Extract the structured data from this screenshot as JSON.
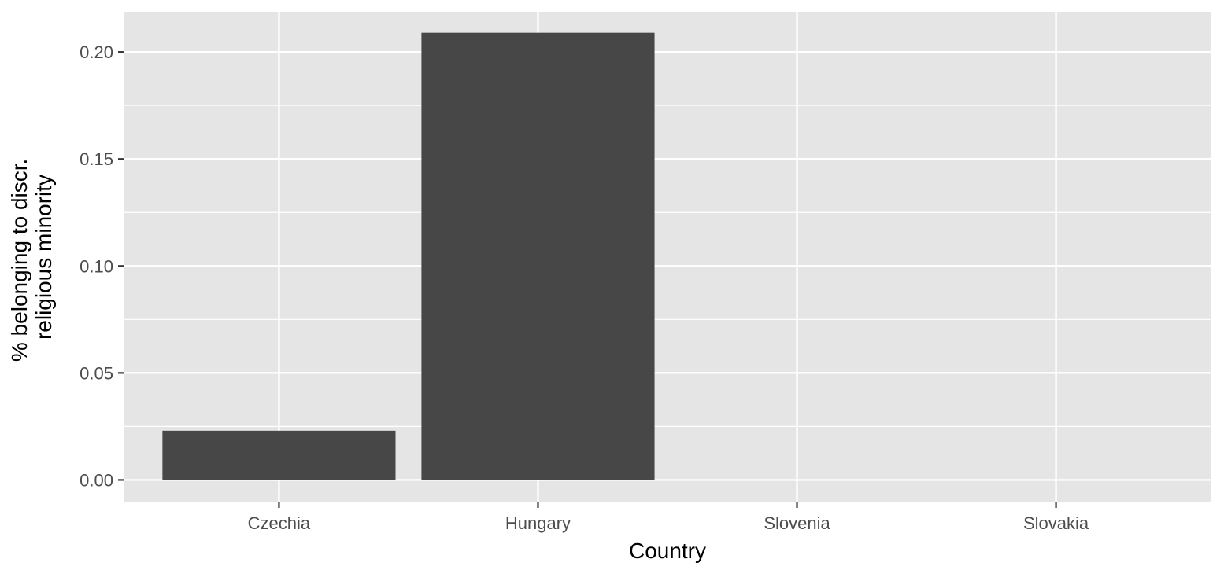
{
  "chart_data": {
    "type": "bar",
    "categories": [
      "Czechia",
      "Hungary",
      "Slovenia",
      "Slovakia"
    ],
    "values": [
      0.023,
      0.209,
      0,
      0
    ],
    "xlabel": "Country",
    "ylabel": [
      "% belonging to discr.",
      "religious minority"
    ],
    "ylim": [
      -0.0105,
      0.2188
    ],
    "yticks": [
      0,
      0.05,
      0.1,
      0.15,
      0.2
    ],
    "ytick_labels": [
      "0.00",
      "0.05",
      "0.10",
      "0.15",
      "0.20"
    ],
    "grid": true,
    "legend": "none",
    "colors": {
      "panel_background": "#e5e5e5",
      "grid_line": "#ffffff",
      "bar_fill": "#474747",
      "tick_mark": "#333333",
      "tick_label": "#4d4d4d",
      "axis_title": "#000000"
    }
  }
}
